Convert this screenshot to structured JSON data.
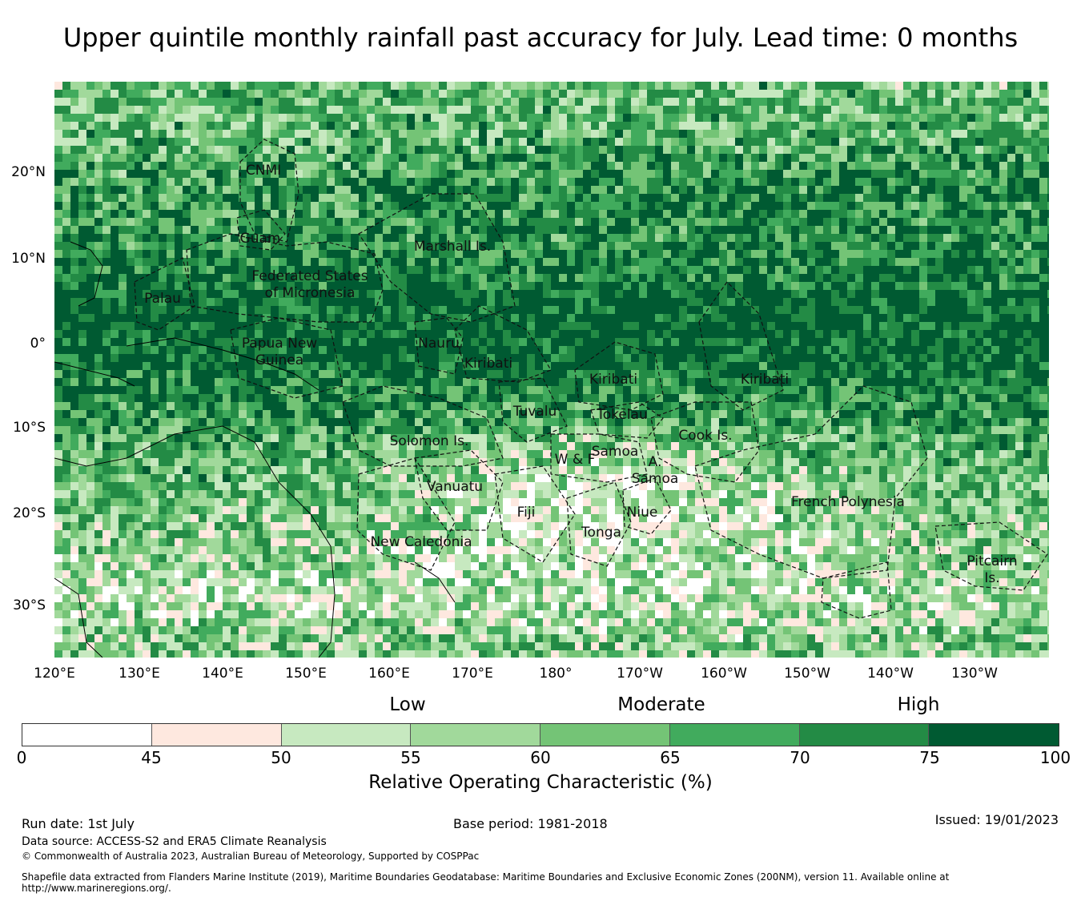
{
  "title": "Upper quintile monthly rainfall past accuracy for July. Lead time: 0 months",
  "map": {
    "lat_labels": [
      "20°N",
      "10°N",
      "0°",
      "10°S",
      "20°S",
      "30°S"
    ],
    "lon_labels": [
      "120°E",
      "130°E",
      "140°E",
      "150°E",
      "160°E",
      "170°E",
      "180°",
      "170°W",
      "160°W",
      "150°W",
      "140°W",
      "130°W"
    ],
    "regions": [
      "CNMI",
      "Guam",
      "Marshall Is.",
      "Federated States",
      "of Micronesia",
      "Palau",
      "Papua New",
      "Guinea",
      "Nauru",
      "Kiribati",
      "Kiribati",
      "Kiribati",
      "Tuvalu",
      "Tokelau",
      "Cook Is.",
      "Solomon Is.",
      "Samoa",
      "W & F",
      "A.",
      "Samoa",
      "Vanuatu",
      "Fiji",
      "Niue",
      "Tonga",
      "French Polynesia",
      "New Caledonia",
      "Pitcairn",
      "Is."
    ]
  },
  "categories": [
    "Low",
    "Moderate",
    "High"
  ],
  "colorbar": {
    "ticks": [
      "0",
      "45",
      "50",
      "55",
      "60",
      "65",
      "70",
      "75",
      "100"
    ],
    "colors": [
      "#ffffff",
      "#fee8df",
      "#c7e9c0",
      "#a1d99b",
      "#74c476",
      "#41ab5d",
      "#238b45",
      "#005a32"
    ],
    "label": "Relative Operating Characteristic (%)"
  },
  "footer": {
    "run_date": "Run date: 1st July",
    "base_period": "Base period: 1981-2018",
    "issued": "Issued: 19/01/2023",
    "data_source": "Data source: ACCESS-S2 and ERA5 Climate Reanalysis",
    "copyright": "© Commonwealth of Australia 2023, Australian Bureau of Meteorology, Supported by COSPPac",
    "shapefile_1": "Shapefile data extracted from Flanders Marine Institute (2019), Maritime Boundaries Geodatabase: Maritime Boundaries and Exclusive Economic Zones (200NM), version 11. Available online at",
    "shapefile_2": "http://www.marineregions.org/."
  }
}
